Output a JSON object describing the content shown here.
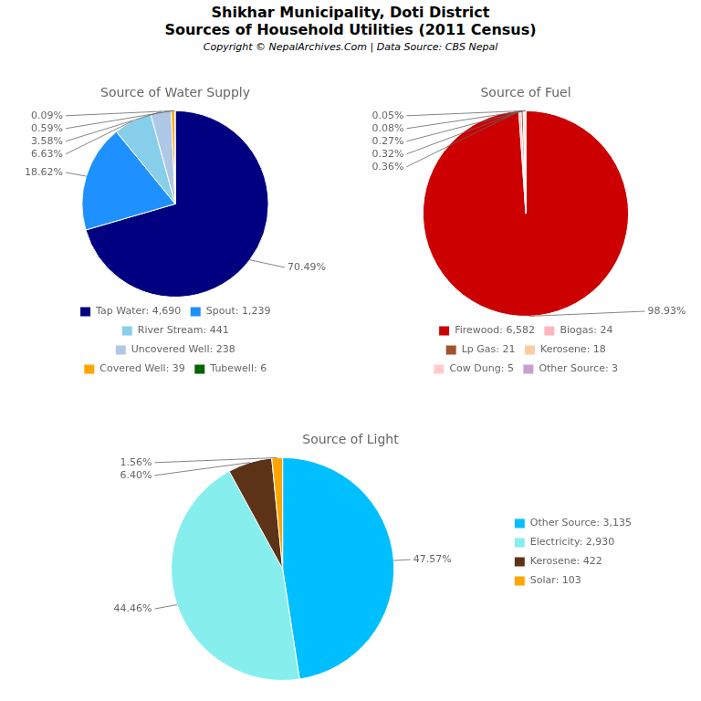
{
  "title": "Shikhar Municipality, Doti District",
  "subtitle": "Sources of Household Utilities (2011 Census)",
  "annotations": [
    "Copyright © NepalArchives.Com | Data Source: CBS Nepal"
  ],
  "chart_data": [
    {
      "type": "pie",
      "title": "Source of Water Supply",
      "categories": [
        "Tap Water: 4,690",
        "Spout: 1,239",
        "River Stream: 441",
        "Uncovered Well: 238",
        "Covered Well: 39",
        "Tubewell: 6"
      ],
      "values": [
        70.49,
        18.62,
        6.63,
        3.58,
        0.59,
        0.09
      ],
      "value_labels": [
        "70.49%",
        "18.62%",
        "6.63%",
        "3.58%",
        "0.59%",
        "0.09%"
      ],
      "colors": [
        "#000080",
        "#1e90ff",
        "#87ceeb",
        "#b0c8e8",
        "#ffa500",
        "#006400"
      ],
      "data_labels": true,
      "legend": "bottom"
    },
    {
      "type": "pie",
      "title": "Source of Fuel",
      "categories": [
        "Firewood: 6,582",
        "Biogas: 24",
        "Lp Gas: 21",
        "Kerosene: 18",
        "Cow Dung: 5",
        "Other Source: 3"
      ],
      "values": [
        98.93,
        0.36,
        0.32,
        0.27,
        0.08,
        0.05
      ],
      "value_labels": [
        "98.93%",
        "0.36%",
        "0.32%",
        "0.27%",
        "0.08%",
        "0.05%"
      ],
      "colors": [
        "#cc0000",
        "#ffb6c1",
        "#a0522d",
        "#ffcba4",
        "#ffcccb",
        "#c8a0d0"
      ],
      "data_labels": true,
      "legend": "bottom"
    },
    {
      "type": "pie",
      "title": "Source of Light",
      "categories": [
        "Other Source: 3,135",
        "Electricity: 2,930",
        "Kerosene: 422",
        "Solar: 103"
      ],
      "values": [
        47.57,
        44.46,
        6.4,
        1.56
      ],
      "value_labels": [
        "47.57%",
        "44.46%",
        "6.40%",
        "1.56%"
      ],
      "colors": [
        "#00bfff",
        "#87eeee",
        "#5c3317",
        "#ffa500"
      ],
      "data_labels": true,
      "legend": "right"
    }
  ]
}
